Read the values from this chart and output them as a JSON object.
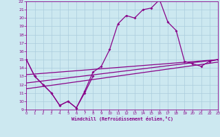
{
  "xlabel": "Windchill (Refroidissement éolien,°C)",
  "bg_color": "#cce8f0",
  "line_color": "#880088",
  "grid_color": "#aaccdd",
  "xlim": [
    0,
    23
  ],
  "ylim": [
    9,
    22
  ],
  "yticks": [
    9,
    10,
    11,
    12,
    13,
    14,
    15,
    16,
    17,
    18,
    19,
    20,
    21,
    22
  ],
  "xticks": [
    0,
    1,
    2,
    3,
    4,
    5,
    6,
    7,
    8,
    9,
    10,
    11,
    12,
    13,
    14,
    15,
    16,
    17,
    18,
    19,
    20,
    21,
    22,
    23
  ],
  "lines": [
    {
      "x": [
        0,
        1,
        2,
        3,
        4,
        5,
        6,
        7,
        8,
        9,
        10,
        11,
        12,
        13,
        14,
        15,
        16,
        17,
        18,
        19,
        20,
        21,
        22,
        23
      ],
      "y": [
        15.0,
        13.0,
        12.0,
        11.0,
        9.5,
        10.0,
        9.2,
        11.2,
        13.5,
        14.2,
        16.2,
        19.3,
        20.3,
        20.0,
        21.0,
        21.2,
        22.2,
        19.5,
        18.5,
        14.8,
        14.5,
        14.2,
        14.8,
        15.0
      ],
      "marker": true
    },
    {
      "x": [
        0,
        1,
        2,
        3,
        4,
        5,
        6,
        7,
        8
      ],
      "y": [
        15.0,
        13.0,
        12.0,
        11.0,
        9.5,
        10.0,
        9.2,
        11.0,
        13.0
      ],
      "marker": true
    },
    {
      "x": [
        0,
        23
      ],
      "y": [
        11.5,
        14.7
      ],
      "marker": false
    },
    {
      "x": [
        0,
        23
      ],
      "y": [
        12.2,
        15.0
      ],
      "marker": false
    },
    {
      "x": [
        0,
        23
      ],
      "y": [
        13.2,
        15.0
      ],
      "marker": false
    }
  ]
}
